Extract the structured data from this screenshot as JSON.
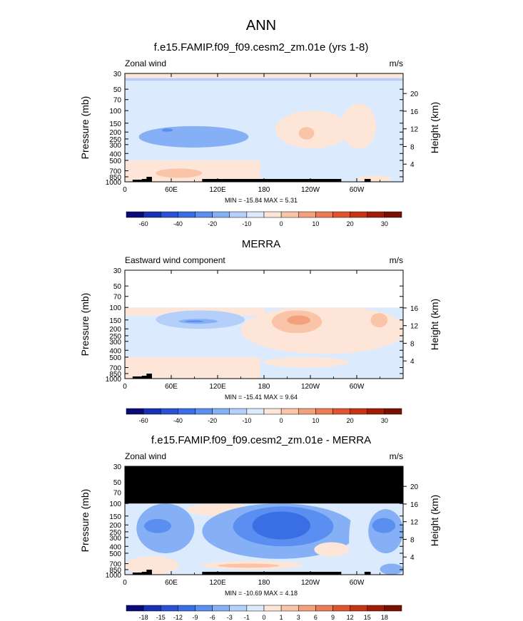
{
  "figure_title": "ANN",
  "chart_data": [
    {
      "type": "heatmap",
      "title": "f.e15.FAMIP.f09_f09.cesm2_zm.01e (yrs 1-8)",
      "left_label": "Zonal wind",
      "right_label": "m/s",
      "ylabel": "Pressure (mb)",
      "ylabel_right": "Height (km)",
      "pressure_ticks": [
        "30",
        "50",
        "70",
        "100",
        "150",
        "200",
        "250",
        "300",
        "400",
        "500",
        "700",
        "850",
        "1000"
      ],
      "height_ticks": [
        "20",
        "16",
        "12",
        "8",
        "4"
      ],
      "lon_ticks": [
        "0",
        "60E",
        "120E",
        "180",
        "120W",
        "60W"
      ],
      "lon_range": [
        0,
        360
      ],
      "pressure_range": [
        30,
        1000
      ],
      "data_top_mb": 30,
      "stats": "MIN = -15.84  MAX =  5.31",
      "colorbar_labels": [
        "-60",
        "-40",
        "-20",
        "-10",
        "0",
        "10",
        "20",
        "30"
      ],
      "colorbar_colors": [
        "#0a0a78",
        "#1830b4",
        "#2a50d6",
        "#3a6ee4",
        "#5a8ef0",
        "#86b0f6",
        "#b4d0fa",
        "#dceafd",
        "#fde6d8",
        "#f9c4a8",
        "#f3a07c",
        "#ec7a52",
        "#e0542e",
        "#c63412",
        "#a01c06",
        "#7a0f02"
      ],
      "regions": [
        {
          "fill": "#dceafd",
          "shape": "full"
        },
        {
          "fill": "#fde6d8",
          "shape": "rect",
          "lon": [
            0,
            360
          ],
          "p": [
            30,
            35
          ]
        },
        {
          "fill": "#b4d0fa",
          "shape": "rect",
          "lon": [
            0,
            360
          ],
          "p": [
            35,
            38
          ]
        },
        {
          "fill": "#86b0f6",
          "shape": "ellipse",
          "lon": [
            18,
            160
          ],
          "p": [
            165,
            330
          ]
        },
        {
          "fill": "#5a8ef0",
          "shape": "ellipse",
          "lon": [
            48,
            62
          ],
          "p": [
            178,
            198
          ]
        },
        {
          "fill": "#fde6d8",
          "shape": "ellipse",
          "lon": [
            195,
            290
          ],
          "p": [
            100,
            340
          ]
        },
        {
          "fill": "#f9c4a8",
          "shape": "ellipse",
          "lon": [
            225,
            245
          ],
          "p": [
            170,
            255
          ]
        },
        {
          "fill": "#fde6d8",
          "shape": "ellipse",
          "lon": [
            280,
            325
          ],
          "p": [
            80,
            345
          ]
        },
        {
          "fill": "#fde6d8",
          "shape": "rect",
          "lon": [
            0,
            175
          ],
          "p": [
            500,
            1000
          ]
        },
        {
          "fill": "#f9c4a8",
          "shape": "ellipse",
          "lon": [
            40,
            100
          ],
          "p": [
            650,
            880
          ]
        },
        {
          "fill": "#fde6d8",
          "shape": "ellipse",
          "lon": [
            300,
            345
          ],
          "p": [
            820,
            1000
          ]
        }
      ],
      "topography": [
        [
          10,
          0
        ],
        [
          22,
          1
        ],
        [
          28,
          2
        ],
        [
          35,
          0
        ],
        [
          100,
          1
        ],
        [
          280,
          0
        ],
        [
          310,
          1
        ],
        [
          318,
          0
        ]
      ]
    },
    {
      "type": "heatmap",
      "title": "MERRA",
      "left_label": "Eastward wind component",
      "right_label": "m/s",
      "ylabel": "Pressure (mb)",
      "ylabel_right": "Height (km)",
      "pressure_ticks": [
        "30",
        "50",
        "70",
        "100",
        "150",
        "200",
        "250",
        "300",
        "400",
        "500",
        "700",
        "850",
        "1000"
      ],
      "height_ticks": [
        "16",
        "12",
        "8",
        "4"
      ],
      "lon_ticks": [
        "0",
        "60E",
        "120E",
        "180",
        "120W",
        "60W"
      ],
      "lon_range": [
        0,
        360
      ],
      "pressure_range": [
        30,
        1000
      ],
      "data_top_mb": 100,
      "stats": "MIN = -15.41  MAX =  9.64",
      "colorbar_labels": [
        "-60",
        "-40",
        "-20",
        "-10",
        "0",
        "10",
        "20",
        "30"
      ],
      "colorbar_colors": [
        "#0a0a78",
        "#1830b4",
        "#2a50d6",
        "#3a6ee4",
        "#5a8ef0",
        "#86b0f6",
        "#b4d0fa",
        "#dceafd",
        "#fde6d8",
        "#f9c4a8",
        "#f3a07c",
        "#ec7a52",
        "#e0542e",
        "#c63412",
        "#a01c06",
        "#7a0f02"
      ],
      "regions": [
        {
          "fill": "#dceafd",
          "shape": "full"
        },
        {
          "fill": "#fde6d8",
          "shape": "rect",
          "lon": [
            0,
            180
          ],
          "p": [
            100,
            130
          ]
        },
        {
          "fill": "#b4d0fa",
          "shape": "ellipse",
          "lon": [
            40,
            155
          ],
          "p": [
            110,
            200
          ]
        },
        {
          "fill": "#86b0f6",
          "shape": "ellipse",
          "lon": [
            70,
            120
          ],
          "p": [
            145,
            170
          ]
        },
        {
          "fill": "#5a8ef0",
          "shape": "ellipse",
          "lon": [
            78,
            102
          ],
          "p": [
            152,
            162
          ]
        },
        {
          "fill": "#fde6d8",
          "shape": "ellipse",
          "lon": [
            150,
            365
          ],
          "p": [
            95,
            450
          ]
        },
        {
          "fill": "#f9c4a8",
          "shape": "ellipse",
          "lon": [
            190,
            255
          ],
          "p": [
            110,
            230
          ]
        },
        {
          "fill": "#f3a07c",
          "shape": "ellipse",
          "lon": [
            210,
            240
          ],
          "p": [
            130,
            175
          ]
        },
        {
          "fill": "#f9c4a8",
          "shape": "ellipse",
          "lon": [
            318,
            340
          ],
          "p": [
            120,
            190
          ]
        },
        {
          "fill": "#fde6d8",
          "shape": "rect",
          "lon": [
            0,
            175
          ],
          "p": [
            500,
            1000
          ]
        },
        {
          "fill": "#fde6d8",
          "shape": "ellipse",
          "lon": [
            180,
            290
          ],
          "p": [
            500,
            700
          ]
        }
      ],
      "topography": [
        [
          10,
          0
        ],
        [
          22,
          1
        ],
        [
          28,
          2
        ],
        [
          35,
          0
        ]
      ]
    },
    {
      "type": "heatmap",
      "title": "f.e15.FAMIP.f09_f09.cesm2_zm.01e - MERRA",
      "left_label": "Zonal wind",
      "right_label": "m/s",
      "ylabel": "Pressure (mb)",
      "ylabel_right": "Height (km)",
      "pressure_ticks": [
        "30",
        "50",
        "70",
        "100",
        "150",
        "200",
        "250",
        "300",
        "400",
        "500",
        "700",
        "850",
        "1000"
      ],
      "height_ticks": [
        "20",
        "16",
        "12",
        "8",
        "4"
      ],
      "lon_ticks": [
        "0",
        "60E",
        "120E",
        "180",
        "120W",
        "60W"
      ],
      "lon_range": [
        0,
        360
      ],
      "pressure_range": [
        30,
        1000
      ],
      "data_top_mb": 30,
      "masked_above_mb": 100,
      "stats": "MIN = -10.69  MAX =  4.18",
      "colorbar_labels": [
        "-18",
        "-15",
        "-12",
        "-9",
        "-6",
        "-3",
        "-1",
        "0",
        "1",
        "3",
        "6",
        "9",
        "12",
        "15",
        "18"
      ],
      "colorbar_colors": [
        "#0a0a78",
        "#1830b4",
        "#2a50d6",
        "#3a6ee4",
        "#5a8ef0",
        "#86b0f6",
        "#b4d0fa",
        "#dceafd",
        "#fde6d8",
        "#f9c4a8",
        "#f3a07c",
        "#ec7a52",
        "#e0542e",
        "#c63412",
        "#a01c06",
        "#7a0f02"
      ],
      "regions": [
        {
          "fill": "#dceafd",
          "shape": "full"
        },
        {
          "fill": "#86b0f6",
          "shape": "ellipse",
          "lon": [
            15,
            90
          ],
          "p": [
            100,
            500
          ]
        },
        {
          "fill": "#5a8ef0",
          "shape": "ellipse",
          "lon": [
            25,
            60
          ],
          "p": [
            165,
            260
          ]
        },
        {
          "fill": "#fde6d8",
          "shape": "ellipse",
          "lon": [
            80,
            170
          ],
          "p": [
            100,
            150
          ]
        },
        {
          "fill": "#86b0f6",
          "shape": "ellipse",
          "lon": [
            100,
            300
          ],
          "p": [
            100,
            600
          ]
        },
        {
          "fill": "#5a8ef0",
          "shape": "ellipse",
          "lon": [
            140,
            270
          ],
          "p": [
            110,
            400
          ]
        },
        {
          "fill": "#3a6ee4",
          "shape": "ellipse",
          "lon": [
            165,
            240
          ],
          "p": [
            130,
            320
          ]
        },
        {
          "fill": "#dceafd",
          "shape": "ellipse",
          "lon": [
            290,
            320
          ],
          "p": [
            100,
            1000
          ]
        },
        {
          "fill": "#86b0f6",
          "shape": "ellipse",
          "lon": [
            315,
            360
          ],
          "p": [
            120,
            500
          ]
        },
        {
          "fill": "#5a8ef0",
          "shape": "ellipse",
          "lon": [
            320,
            350
          ],
          "p": [
            160,
            260
          ]
        },
        {
          "fill": "#fde6d8",
          "shape": "ellipse",
          "lon": [
            0,
            70
          ],
          "p": [
            550,
            1000
          ]
        },
        {
          "fill": "#fde6d8",
          "shape": "ellipse",
          "lon": [
            100,
            230
          ],
          "p": [
            640,
            850
          ]
        },
        {
          "fill": "#f9c4a8",
          "shape": "ellipse",
          "lon": [
            120,
            200
          ],
          "p": [
            700,
            800
          ]
        },
        {
          "fill": "#fde6d8",
          "shape": "ellipse",
          "lon": [
            245,
            290
          ],
          "p": [
            350,
            560
          ]
        },
        {
          "fill": "#86b0f6",
          "shape": "ellipse",
          "lon": [
            330,
            360
          ],
          "p": [
            700,
            1000
          ]
        }
      ],
      "topography": [
        [
          10,
          0
        ],
        [
          22,
          1
        ],
        [
          28,
          2
        ],
        [
          35,
          0
        ],
        [
          100,
          1
        ],
        [
          280,
          0
        ],
        [
          310,
          1
        ],
        [
          318,
          0
        ]
      ]
    }
  ]
}
